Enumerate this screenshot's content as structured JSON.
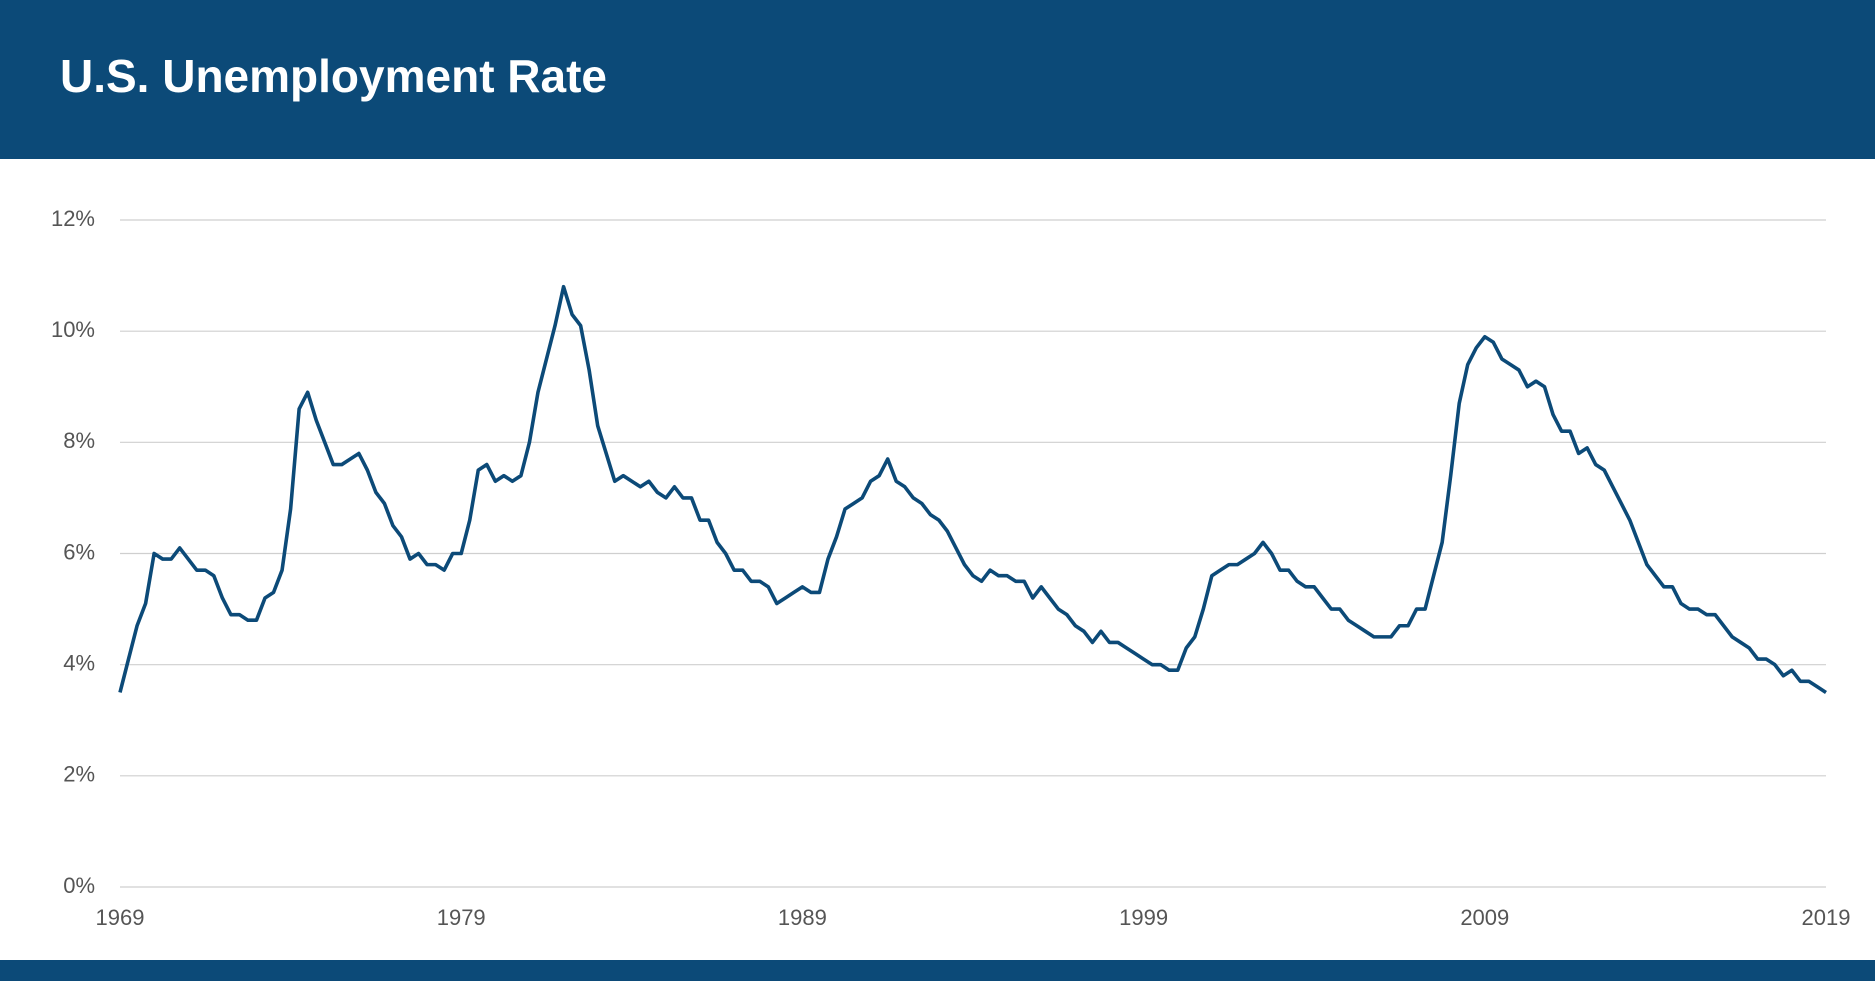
{
  "chart_data": {
    "type": "line",
    "title": "U.S. Unemployment Rate",
    "xlim": [
      1969,
      2019
    ],
    "xticks": [
      1969,
      1979,
      1989,
      1999,
      2009,
      2019
    ],
    "ylim": [
      0,
      12
    ],
    "yticks": [
      {
        "value": 0,
        "label": "0%"
      },
      {
        "value": 2,
        "label": "2%"
      },
      {
        "value": 4,
        "label": "4%"
      },
      {
        "value": 6,
        "label": "6%"
      },
      {
        "value": 8,
        "label": "8%"
      },
      {
        "value": 10,
        "label": "10%"
      },
      {
        "value": 12,
        "label": "12%"
      }
    ],
    "grid": true,
    "x": [
      1969,
      1969.25,
      1969.5,
      1969.75,
      1970,
      1970.25,
      1970.5,
      1970.75,
      1971,
      1971.25,
      1971.5,
      1971.75,
      1972,
      1972.25,
      1972.5,
      1972.75,
      1973,
      1973.25,
      1973.5,
      1973.75,
      1974,
      1974.25,
      1974.5,
      1974.75,
      1975,
      1975.25,
      1975.5,
      1975.75,
      1976,
      1976.25,
      1976.5,
      1976.75,
      1977,
      1977.25,
      1977.5,
      1977.75,
      1978,
      1978.25,
      1978.5,
      1978.75,
      1979,
      1979.25,
      1979.5,
      1979.75,
      1980,
      1980.25,
      1980.5,
      1980.75,
      1981,
      1981.25,
      1981.5,
      1981.75,
      1982,
      1982.25,
      1982.5,
      1982.75,
      1983,
      1983.25,
      1983.5,
      1983.75,
      1984,
      1984.25,
      1984.5,
      1984.75,
      1985,
      1985.25,
      1985.5,
      1985.75,
      1986,
      1986.25,
      1986.5,
      1986.75,
      1987,
      1987.25,
      1987.5,
      1987.75,
      1988,
      1988.25,
      1988.5,
      1988.75,
      1989,
      1989.25,
      1989.5,
      1989.75,
      1990,
      1990.25,
      1990.5,
      1990.75,
      1991,
      1991.25,
      1991.5,
      1991.75,
      1992,
      1992.25,
      1992.5,
      1992.75,
      1993,
      1993.25,
      1993.5,
      1993.75,
      1994,
      1994.25,
      1994.5,
      1994.75,
      1995,
      1995.25,
      1995.5,
      1995.75,
      1996,
      1996.25,
      1996.5,
      1996.75,
      1997,
      1997.25,
      1997.5,
      1997.75,
      1998,
      1998.25,
      1998.5,
      1998.75,
      1999,
      1999.25,
      1999.5,
      1999.75,
      2000,
      2000.25,
      2000.5,
      2000.75,
      2001,
      2001.25,
      2001.5,
      2001.75,
      2002,
      2002.25,
      2002.5,
      2002.75,
      2003,
      2003.25,
      2003.5,
      2003.75,
      2004,
      2004.25,
      2004.5,
      2004.75,
      2005,
      2005.25,
      2005.5,
      2005.75,
      2006,
      2006.25,
      2006.5,
      2006.75,
      2007,
      2007.25,
      2007.5,
      2007.75,
      2008,
      2008.25,
      2008.5,
      2008.75,
      2009,
      2009.25,
      2009.5,
      2009.75,
      2010,
      2010.25,
      2010.5,
      2010.75,
      2011,
      2011.25,
      2011.5,
      2011.75,
      2012,
      2012.25,
      2012.5,
      2012.75,
      2013,
      2013.25,
      2013.5,
      2013.75,
      2014,
      2014.25,
      2014.5,
      2014.75,
      2015,
      2015.25,
      2015.5,
      2015.75,
      2016,
      2016.25,
      2016.5,
      2016.75,
      2017,
      2017.25,
      2017.5,
      2017.75,
      2018,
      2018.25,
      2018.5,
      2018.75,
      2019
    ],
    "series": [
      {
        "color": "#0c4a78",
        "values": [
          3.5,
          4.1,
          4.7,
          5.1,
          6.0,
          5.9,
          5.9,
          6.1,
          5.9,
          5.7,
          5.7,
          5.6,
          5.2,
          4.9,
          4.9,
          4.8,
          4.8,
          5.2,
          5.3,
          5.7,
          6.8,
          8.6,
          8.9,
          8.4,
          8.0,
          7.6,
          7.6,
          7.7,
          7.8,
          7.5,
          7.1,
          6.9,
          6.5,
          6.3,
          5.9,
          6.0,
          5.8,
          5.8,
          5.7,
          6.0,
          6.0,
          6.6,
          7.5,
          7.6,
          7.3,
          7.4,
          7.3,
          7.4,
          8.0,
          8.9,
          9.5,
          10.1,
          10.8,
          10.3,
          10.1,
          9.3,
          8.3,
          7.8,
          7.3,
          7.4,
          7.3,
          7.2,
          7.3,
          7.1,
          7.0,
          7.2,
          7.0,
          7.0,
          6.6,
          6.6,
          6.2,
          6.0,
          5.7,
          5.7,
          5.5,
          5.5,
          5.4,
          5.1,
          5.2,
          5.3,
          5.4,
          5.3,
          5.3,
          5.9,
          6.3,
          6.8,
          6.9,
          7.0,
          7.3,
          7.4,
          7.7,
          7.3,
          7.2,
          7.0,
          6.9,
          6.7,
          6.6,
          6.4,
          6.1,
          5.8,
          5.6,
          5.5,
          5.7,
          5.6,
          5.6,
          5.5,
          5.5,
          5.2,
          5.4,
          5.2,
          5.0,
          4.9,
          4.7,
          4.6,
          4.4,
          4.6,
          4.4,
          4.4,
          4.3,
          4.2,
          4.1,
          4.0,
          4.0,
          3.9,
          3.9,
          4.3,
          4.5,
          5.0,
          5.6,
          5.7,
          5.8,
          5.8,
          5.9,
          6.0,
          6.2,
          6.0,
          5.7,
          5.7,
          5.5,
          5.4,
          5.4,
          5.2,
          5.0,
          5.0,
          4.8,
          4.7,
          4.6,
          4.5,
          4.5,
          4.5,
          4.7,
          4.7,
          5.0,
          5.0,
          5.6,
          6.2,
          7.4,
          8.7,
          9.4,
          9.7,
          9.9,
          9.8,
          9.5,
          9.4,
          9.3,
          9.0,
          9.1,
          9.0,
          8.5,
          8.2,
          8.2,
          7.8,
          7.9,
          7.6,
          7.5,
          7.2,
          6.9,
          6.6,
          6.2,
          5.8,
          5.6,
          5.4,
          5.4,
          5.1,
          5.0,
          5.0,
          4.9,
          4.9,
          4.7,
          4.5,
          4.4,
          4.3,
          4.1,
          4.1,
          4.0,
          3.8,
          3.9,
          3.7,
          3.7,
          3.6,
          3.5
        ]
      }
    ]
  }
}
